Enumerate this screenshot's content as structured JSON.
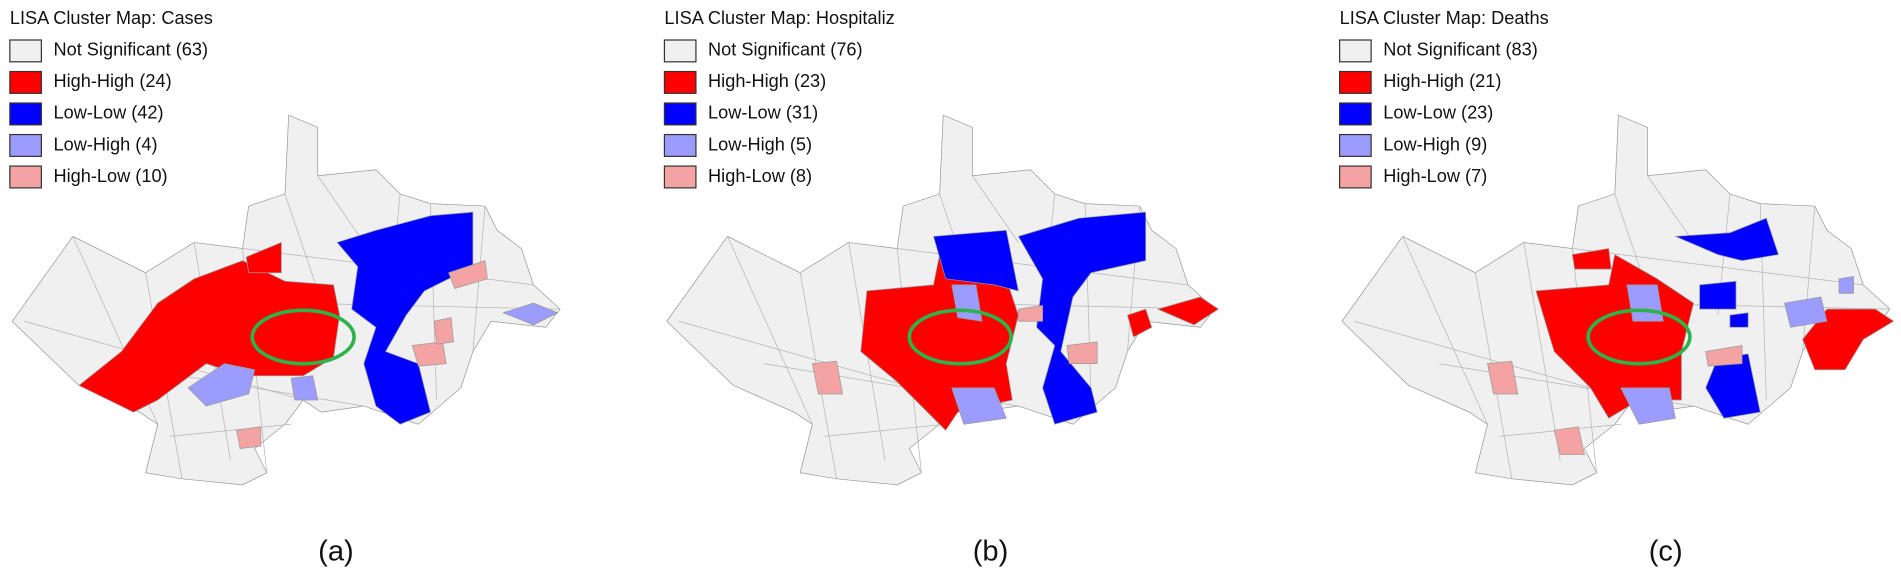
{
  "panels": [
    {
      "title": "LISA Cluster Map: Cases",
      "caption": "(a)",
      "legend": [
        {
          "label": "Not Significant (63)",
          "color": "#f0f0f0"
        },
        {
          "label": "High-High (24)",
          "color": "#ff0000"
        },
        {
          "label": "Low-Low (42)",
          "color": "#0000ff"
        },
        {
          "label": "Low-High (4)",
          "color": "#9c9cff"
        },
        {
          "label": "High-Low (10)",
          "color": "#f4a3a3"
        }
      ]
    },
    {
      "title": "LISA Cluster Map: Hospitaliz",
      "caption": "(b)",
      "legend": [
        {
          "label": "Not Significant (76)",
          "color": "#f0f0f0"
        },
        {
          "label": "High-High (23)",
          "color": "#ff0000"
        },
        {
          "label": "Low-Low (31)",
          "color": "#0000ff"
        },
        {
          "label": "Low-High (5)",
          "color": "#9c9cff"
        },
        {
          "label": "High-Low (8)",
          "color": "#f4a3a3"
        }
      ]
    },
    {
      "title": "LISA Cluster Map: Deaths",
      "caption": "(c)",
      "legend": [
        {
          "label": "Not Significant (83)",
          "color": "#f0f0f0"
        },
        {
          "label": "High-High (21)",
          "color": "#ff0000"
        },
        {
          "label": "Low-Low (23)",
          "color": "#0000ff"
        },
        {
          "label": "Low-High (9)",
          "color": "#9c9cff"
        },
        {
          "label": "High-Low (7)",
          "color": "#f4a3a3"
        }
      ]
    }
  ]
}
